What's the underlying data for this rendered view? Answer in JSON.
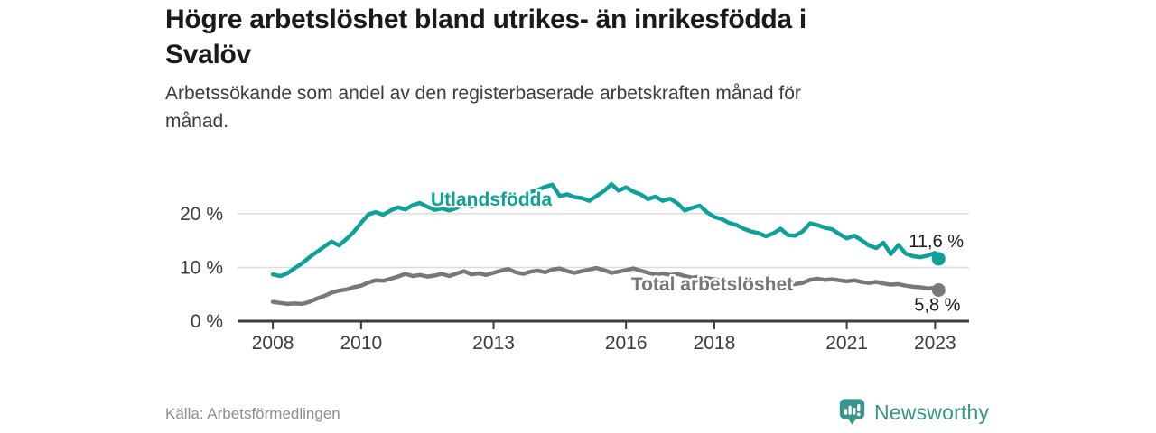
{
  "header": {
    "title_lines": [
      "Högre arbetslöshet bland utrikes- än inrikesfödda i",
      "Svalöv"
    ],
    "subtitle_lines": [
      "Arbetssökande som andel av den registerbaserade arbetskraften månad för",
      "månad."
    ]
  },
  "footer": {
    "source": "Källa: Arbetsförmedlingen",
    "brand": "Newsworthy",
    "brand_icon": "newsworthy-speech-bubble-bar-chart-icon",
    "brand_color": "#39948d"
  },
  "colors": {
    "foreign_born_line": "#10a09a",
    "total_line": "#787878",
    "axis": "#3c3c3c",
    "gridline": "#dcdcdc",
    "value_label": "#1a1a1a"
  },
  "chart_data": {
    "type": "line",
    "title": "Högre arbetslöshet bland utrikes- än inrikesfödda i Svalöv",
    "subtitle": "Arbetssökande som andel av den registerbaserade arbetskraften månad för månad.",
    "source": "Källa: Arbetsförmedlingen",
    "xlabel": "",
    "ylabel": "%",
    "grid": "horizontal",
    "legend_position": "inline-labels",
    "xlim": [
      2007.2,
      2023.77
    ],
    "ylim": [
      0,
      26.2
    ],
    "x_ticks": [
      2008,
      2010,
      2013,
      2016,
      2018,
      2021,
      2023
    ],
    "y_ticks": [
      {
        "value": 0,
        "label": "0 %"
      },
      {
        "value": 10,
        "label": "10 %"
      },
      {
        "value": 20,
        "label": "20 %"
      }
    ],
    "series": [
      {
        "id": "utlandsfodda",
        "name": "Utlandsfödda",
        "color": "#10a09a",
        "end_label": "11,6 %",
        "end_value": 11.6,
        "label_pos": {
          "year": 2012.95,
          "pct": 21.5
        },
        "points": [
          [
            2008.0,
            8.7
          ],
          [
            2008.17,
            8.4
          ],
          [
            2008.33,
            8.9
          ],
          [
            2008.5,
            9.9
          ],
          [
            2008.67,
            10.8
          ],
          [
            2008.83,
            11.9
          ],
          [
            2009.0,
            12.9
          ],
          [
            2009.17,
            13.9
          ],
          [
            2009.33,
            14.8
          ],
          [
            2009.5,
            14.1
          ],
          [
            2009.67,
            15.3
          ],
          [
            2009.83,
            16.6
          ],
          [
            2010.0,
            18.3
          ],
          [
            2010.17,
            19.9
          ],
          [
            2010.33,
            20.3
          ],
          [
            2010.5,
            19.8
          ],
          [
            2010.67,
            20.6
          ],
          [
            2010.83,
            21.2
          ],
          [
            2011.0,
            20.8
          ],
          [
            2011.17,
            21.6
          ],
          [
            2011.33,
            22.0
          ],
          [
            2011.5,
            21.3
          ],
          [
            2011.67,
            20.7
          ],
          [
            2011.83,
            21.0
          ],
          [
            2012.0,
            20.6
          ],
          [
            2012.17,
            21.1
          ],
          [
            2012.33,
            21.8
          ],
          [
            2012.5,
            21.3
          ],
          [
            2012.67,
            22.1
          ],
          [
            2012.83,
            22.7
          ],
          [
            2013.0,
            22.3
          ],
          [
            2013.17,
            22.9
          ],
          [
            2013.33,
            23.4
          ],
          [
            2013.5,
            22.9
          ],
          [
            2013.67,
            23.3
          ],
          [
            2013.83,
            24.0
          ],
          [
            2014.0,
            24.4
          ],
          [
            2014.17,
            25.0
          ],
          [
            2014.33,
            25.4
          ],
          [
            2014.5,
            23.3
          ],
          [
            2014.67,
            23.6
          ],
          [
            2014.83,
            23.1
          ],
          [
            2015.0,
            22.9
          ],
          [
            2015.17,
            22.4
          ],
          [
            2015.33,
            23.3
          ],
          [
            2015.5,
            24.2
          ],
          [
            2015.67,
            25.5
          ],
          [
            2015.83,
            24.3
          ],
          [
            2016.0,
            24.9
          ],
          [
            2016.17,
            24.1
          ],
          [
            2016.33,
            23.6
          ],
          [
            2016.5,
            22.7
          ],
          [
            2016.67,
            23.2
          ],
          [
            2016.83,
            22.4
          ],
          [
            2017.0,
            22.8
          ],
          [
            2017.17,
            21.9
          ],
          [
            2017.33,
            20.6
          ],
          [
            2017.5,
            21.1
          ],
          [
            2017.67,
            21.5
          ],
          [
            2017.83,
            20.3
          ],
          [
            2018.0,
            19.4
          ],
          [
            2018.17,
            19.0
          ],
          [
            2018.33,
            18.3
          ],
          [
            2018.5,
            17.9
          ],
          [
            2018.67,
            17.2
          ],
          [
            2018.83,
            16.7
          ],
          [
            2019.0,
            16.4
          ],
          [
            2019.17,
            15.8
          ],
          [
            2019.33,
            16.3
          ],
          [
            2019.5,
            17.2
          ],
          [
            2019.67,
            16.0
          ],
          [
            2019.83,
            15.9
          ],
          [
            2020.0,
            16.7
          ],
          [
            2020.17,
            18.2
          ],
          [
            2020.33,
            17.9
          ],
          [
            2020.5,
            17.4
          ],
          [
            2020.67,
            17.1
          ],
          [
            2020.83,
            16.2
          ],
          [
            2021.0,
            15.4
          ],
          [
            2021.17,
            15.9
          ],
          [
            2021.33,
            15.1
          ],
          [
            2021.5,
            14.1
          ],
          [
            2021.67,
            13.6
          ],
          [
            2021.83,
            14.6
          ],
          [
            2022.0,
            12.5
          ],
          [
            2022.17,
            14.2
          ],
          [
            2022.33,
            12.6
          ],
          [
            2022.5,
            12.1
          ],
          [
            2022.67,
            11.9
          ],
          [
            2022.83,
            12.2
          ],
          [
            2023.0,
            12.7
          ],
          [
            2023.08,
            11.6
          ]
        ]
      },
      {
        "id": "total",
        "name": "Total arbetslöshet",
        "color": "#787878",
        "end_label": "5,8 %",
        "end_value": 5.8,
        "label_pos": {
          "year": 2017.95,
          "pct": 5.7
        },
        "points": [
          [
            2008.0,
            3.6
          ],
          [
            2008.17,
            3.4
          ],
          [
            2008.33,
            3.2
          ],
          [
            2008.5,
            3.3
          ],
          [
            2008.67,
            3.2
          ],
          [
            2008.83,
            3.6
          ],
          [
            2009.0,
            4.2
          ],
          [
            2009.17,
            4.7
          ],
          [
            2009.33,
            5.3
          ],
          [
            2009.5,
            5.7
          ],
          [
            2009.67,
            5.9
          ],
          [
            2009.83,
            6.3
          ],
          [
            2010.0,
            6.6
          ],
          [
            2010.17,
            7.2
          ],
          [
            2010.33,
            7.6
          ],
          [
            2010.5,
            7.5
          ],
          [
            2010.67,
            7.9
          ],
          [
            2010.83,
            8.3
          ],
          [
            2011.0,
            8.8
          ],
          [
            2011.17,
            8.4
          ],
          [
            2011.33,
            8.6
          ],
          [
            2011.5,
            8.3
          ],
          [
            2011.67,
            8.5
          ],
          [
            2011.83,
            8.8
          ],
          [
            2012.0,
            8.4
          ],
          [
            2012.17,
            8.9
          ],
          [
            2012.33,
            9.3
          ],
          [
            2012.5,
            8.7
          ],
          [
            2012.67,
            8.9
          ],
          [
            2012.83,
            8.6
          ],
          [
            2013.0,
            9.0
          ],
          [
            2013.17,
            9.4
          ],
          [
            2013.33,
            9.7
          ],
          [
            2013.5,
            9.1
          ],
          [
            2013.67,
            8.8
          ],
          [
            2013.83,
            9.2
          ],
          [
            2014.0,
            9.4
          ],
          [
            2014.17,
            9.1
          ],
          [
            2014.33,
            9.6
          ],
          [
            2014.5,
            9.8
          ],
          [
            2014.67,
            9.3
          ],
          [
            2014.83,
            9.0
          ],
          [
            2015.0,
            9.3
          ],
          [
            2015.17,
            9.6
          ],
          [
            2015.33,
            9.9
          ],
          [
            2015.5,
            9.5
          ],
          [
            2015.67,
            9.0
          ],
          [
            2015.83,
            9.2
          ],
          [
            2016.0,
            9.5
          ],
          [
            2016.17,
            9.8
          ],
          [
            2016.33,
            9.4
          ],
          [
            2016.5,
            9.0
          ],
          [
            2016.67,
            8.7
          ],
          [
            2016.83,
            8.9
          ],
          [
            2017.0,
            8.6
          ],
          [
            2017.17,
            8.8
          ],
          [
            2017.33,
            8.4
          ],
          [
            2017.5,
            8.1
          ],
          [
            2017.67,
            8.3
          ],
          [
            2017.83,
            8.0
          ],
          [
            2018.0,
            7.8
          ],
          [
            2018.17,
            7.6
          ],
          [
            2018.33,
            7.4
          ],
          [
            2018.5,
            7.2
          ],
          [
            2018.67,
            7.3
          ],
          [
            2018.83,
            7.1
          ],
          [
            2019.0,
            6.9
          ],
          [
            2019.17,
            7.1
          ],
          [
            2019.33,
            7.3
          ],
          [
            2019.5,
            7.0
          ],
          [
            2019.67,
            6.8
          ],
          [
            2019.83,
            6.9
          ],
          [
            2020.0,
            7.1
          ],
          [
            2020.17,
            7.7
          ],
          [
            2020.33,
            7.9
          ],
          [
            2020.5,
            7.7
          ],
          [
            2020.67,
            7.8
          ],
          [
            2020.83,
            7.6
          ],
          [
            2021.0,
            7.4
          ],
          [
            2021.17,
            7.6
          ],
          [
            2021.33,
            7.3
          ],
          [
            2021.5,
            7.1
          ],
          [
            2021.67,
            7.3
          ],
          [
            2021.83,
            7.0
          ],
          [
            2022.0,
            6.8
          ],
          [
            2022.17,
            6.9
          ],
          [
            2022.33,
            6.6
          ],
          [
            2022.5,
            6.4
          ],
          [
            2022.67,
            6.3
          ],
          [
            2022.83,
            6.1
          ],
          [
            2023.0,
            6.2
          ],
          [
            2023.08,
            5.8
          ]
        ]
      }
    ]
  }
}
